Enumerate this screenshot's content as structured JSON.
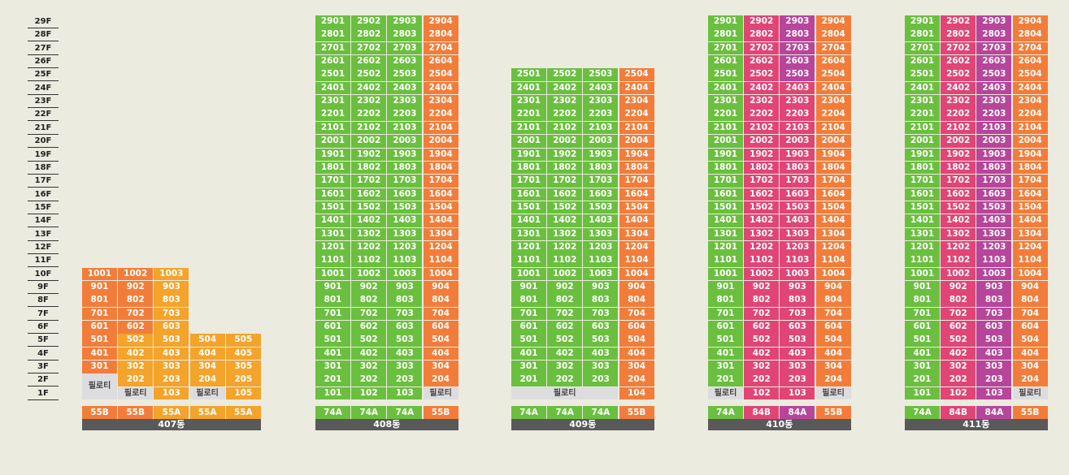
{
  "colors": {
    "green": "#6bbf3f",
    "orange": "#f27d3a",
    "yellow": "#f4a32b",
    "pink": "#e04576",
    "purple": "#b7469b",
    "pilotis": "#dddde0",
    "label_bar": "#595959",
    "background": "#ecebdf"
  },
  "floors": [
    "29F",
    "28F",
    "27F",
    "26F",
    "25F",
    "24F",
    "23F",
    "22F",
    "21F",
    "20F",
    "19F",
    "18F",
    "17F",
    "16F",
    "15F",
    "14F",
    "13F",
    "12F",
    "11F",
    "10F",
    "9F",
    "8F",
    "7F",
    "6F",
    "5F",
    "4F",
    "3F",
    "2F",
    "1F"
  ],
  "pilotis_label": "필로티",
  "buildings": [
    {
      "name": "407동",
      "units": [
        "55B",
        "55B",
        "55A",
        "55A",
        "55A"
      ],
      "type_colors": [
        "orange",
        "orange",
        "yellow",
        "yellow",
        "yellow"
      ],
      "cols": [
        {
          "colors": [
            "orange"
          ],
          "floors": [
            1,
            10
          ],
          "pilotis": [
            1
          ]
        },
        {
          "colors": [
            "orange",
            "yellow"
          ],
          "split": 2,
          "floors": [
            1,
            10
          ],
          "pilotis": [
            1
          ]
        },
        {
          "colors": [
            "yellow"
          ],
          "floors": [
            1,
            10
          ],
          "pilotis": []
        },
        {
          "colors": [
            "yellow"
          ],
          "floors": [
            1,
            5
          ],
          "pilotis": [
            1
          ]
        },
        {
          "colors": [
            "yellow"
          ],
          "floors": [
            1,
            5
          ],
          "pilotis": []
        }
      ],
      "merged_pilotis": {
        "cols": [
          0
        ],
        "floors": [
          1,
          2
        ]
      },
      "extra_pilotis": [
        {
          "col": 1,
          "floor": 1
        },
        {
          "col": 3,
          "floor": 1
        }
      ]
    },
    {
      "name": "408동",
      "units": [
        "74A",
        "74A",
        "74A",
        "55B"
      ],
      "type_colors": [
        "green",
        "green",
        "green",
        "orange"
      ],
      "cols": [
        {
          "colors": [
            "green"
          ],
          "floors": [
            1,
            29
          ],
          "pilotis": []
        },
        {
          "colors": [
            "green"
          ],
          "floors": [
            1,
            29
          ],
          "pilotis": []
        },
        {
          "colors": [
            "green"
          ],
          "floors": [
            1,
            29
          ],
          "pilotis": []
        },
        {
          "colors": [
            "orange"
          ],
          "floors": [
            1,
            29
          ],
          "pilotis": [
            1
          ]
        }
      ]
    },
    {
      "name": "409동",
      "units": [
        "74A",
        "74A",
        "74A",
        "55B"
      ],
      "type_colors": [
        "green",
        "green",
        "green",
        "orange"
      ],
      "cols": [
        {
          "colors": [
            "green"
          ],
          "floors": [
            2,
            25
          ],
          "pilotis": []
        },
        {
          "colors": [
            "green"
          ],
          "floors": [
            2,
            25
          ],
          "pilotis": []
        },
        {
          "colors": [
            "green"
          ],
          "floors": [
            2,
            25
          ],
          "pilotis": []
        },
        {
          "colors": [
            "orange"
          ],
          "floors": [
            1,
            25
          ],
          "pilotis": []
        }
      ],
      "wide_pilotis": {
        "cols": [
          0,
          2
        ],
        "floor": 1
      }
    },
    {
      "name": "410동",
      "units": [
        "74A",
        "84B",
        "84A",
        "55B"
      ],
      "type_colors": [
        "green",
        "pink",
        "purple",
        "orange"
      ],
      "cols": [
        {
          "colors": [
            "green"
          ],
          "floors": [
            1,
            29
          ],
          "pilotis": [
            1
          ]
        },
        {
          "colors": [
            "pink"
          ],
          "floors": [
            1,
            29
          ],
          "pilotis": []
        },
        {
          "colors": [
            "pink",
            "purple"
          ],
          "split": 25,
          "floors": [
            1,
            29
          ],
          "pilotis": []
        },
        {
          "colors": [
            "orange"
          ],
          "floors": [
            1,
            29
          ],
          "pilotis": [
            1
          ]
        }
      ]
    },
    {
      "name": "411동",
      "units": [
        "74A",
        "84B",
        "84A",
        "55B"
      ],
      "type_colors": [
        "green",
        "pink",
        "purple",
        "orange"
      ],
      "cols": [
        {
          "colors": [
            "green"
          ],
          "floors": [
            1,
            29
          ],
          "pilotis": []
        },
        {
          "colors": [
            "pink"
          ],
          "floors": [
            1,
            29
          ],
          "pilotis": []
        },
        {
          "colors": [
            "purple"
          ],
          "floors": [
            1,
            29
          ],
          "pilotis": []
        },
        {
          "colors": [
            "orange"
          ],
          "floors": [
            1,
            29
          ],
          "pilotis": [
            1
          ]
        }
      ]
    }
  ]
}
